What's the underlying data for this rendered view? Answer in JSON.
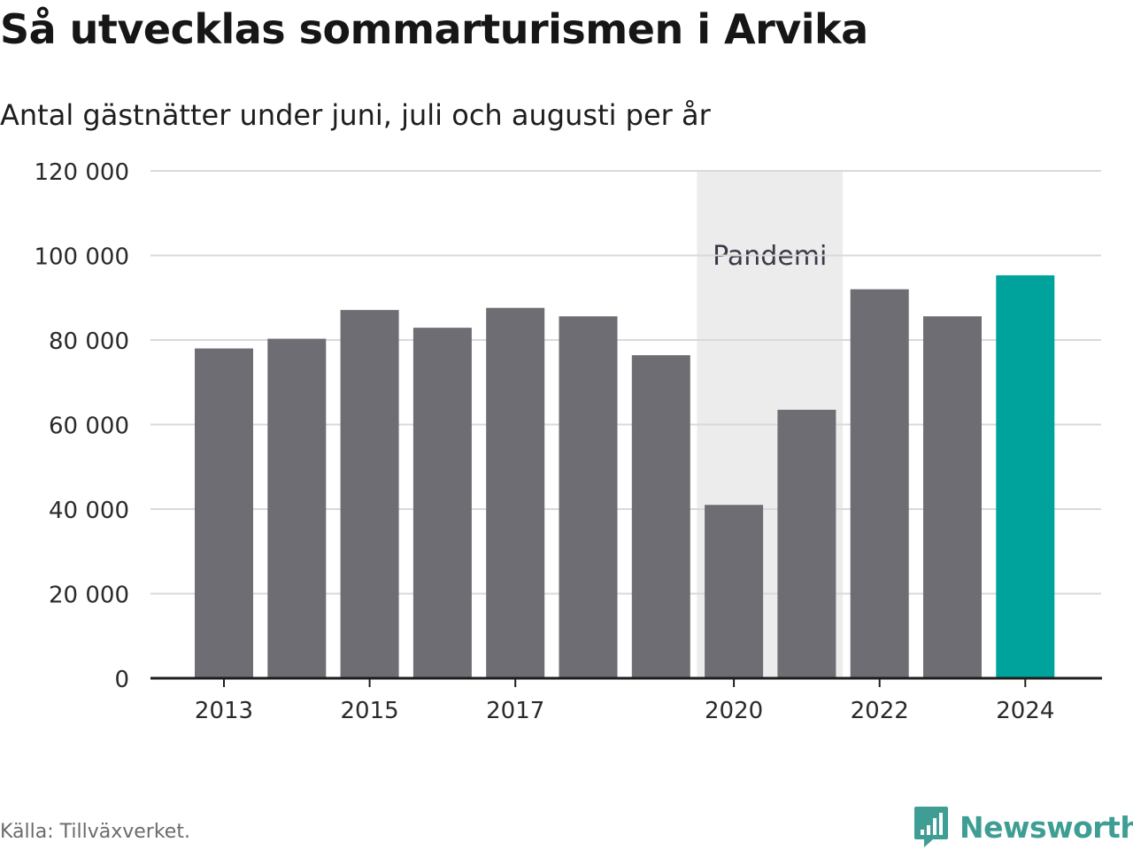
{
  "header": {
    "title": "Så utvecklas sommarturismen i Arvika",
    "subtitle": "Antal gästnätter under juni, juli och augusti per år"
  },
  "footer": {
    "source": "Källa: Tillväxverket.",
    "brand": "Newsworthy"
  },
  "colors": {
    "bar": "#6e6d73",
    "highlight": "#00a39b",
    "band": "#ececec",
    "grid": "#d9d9d9",
    "axis": "#1e1e1e",
    "brand": "#3f9e94"
  },
  "chart_data": {
    "type": "bar",
    "categories": [
      "2013",
      "2014",
      "2015",
      "2016",
      "2017",
      "2018",
      "2019",
      "2020",
      "2021",
      "2022",
      "2023",
      "2024"
    ],
    "values": [
      78000,
      80300,
      87100,
      82900,
      87600,
      85600,
      76400,
      41000,
      63500,
      92000,
      85600,
      95300
    ],
    "highlight_category": "2024",
    "x_tick_labels": [
      "2013",
      "2015",
      "2017",
      "2020",
      "2022",
      "2024"
    ],
    "ylim": [
      0,
      120000
    ],
    "y_ticks": [
      0,
      20000,
      40000,
      60000,
      80000,
      100000,
      120000
    ],
    "y_tick_labels": [
      "0",
      "20 000",
      "40 000",
      "60 000",
      "80 000",
      "100 000",
      "120 000"
    ],
    "grid": true,
    "annotation": {
      "label": "Pandemi",
      "from": "2020",
      "to": "2021"
    }
  }
}
